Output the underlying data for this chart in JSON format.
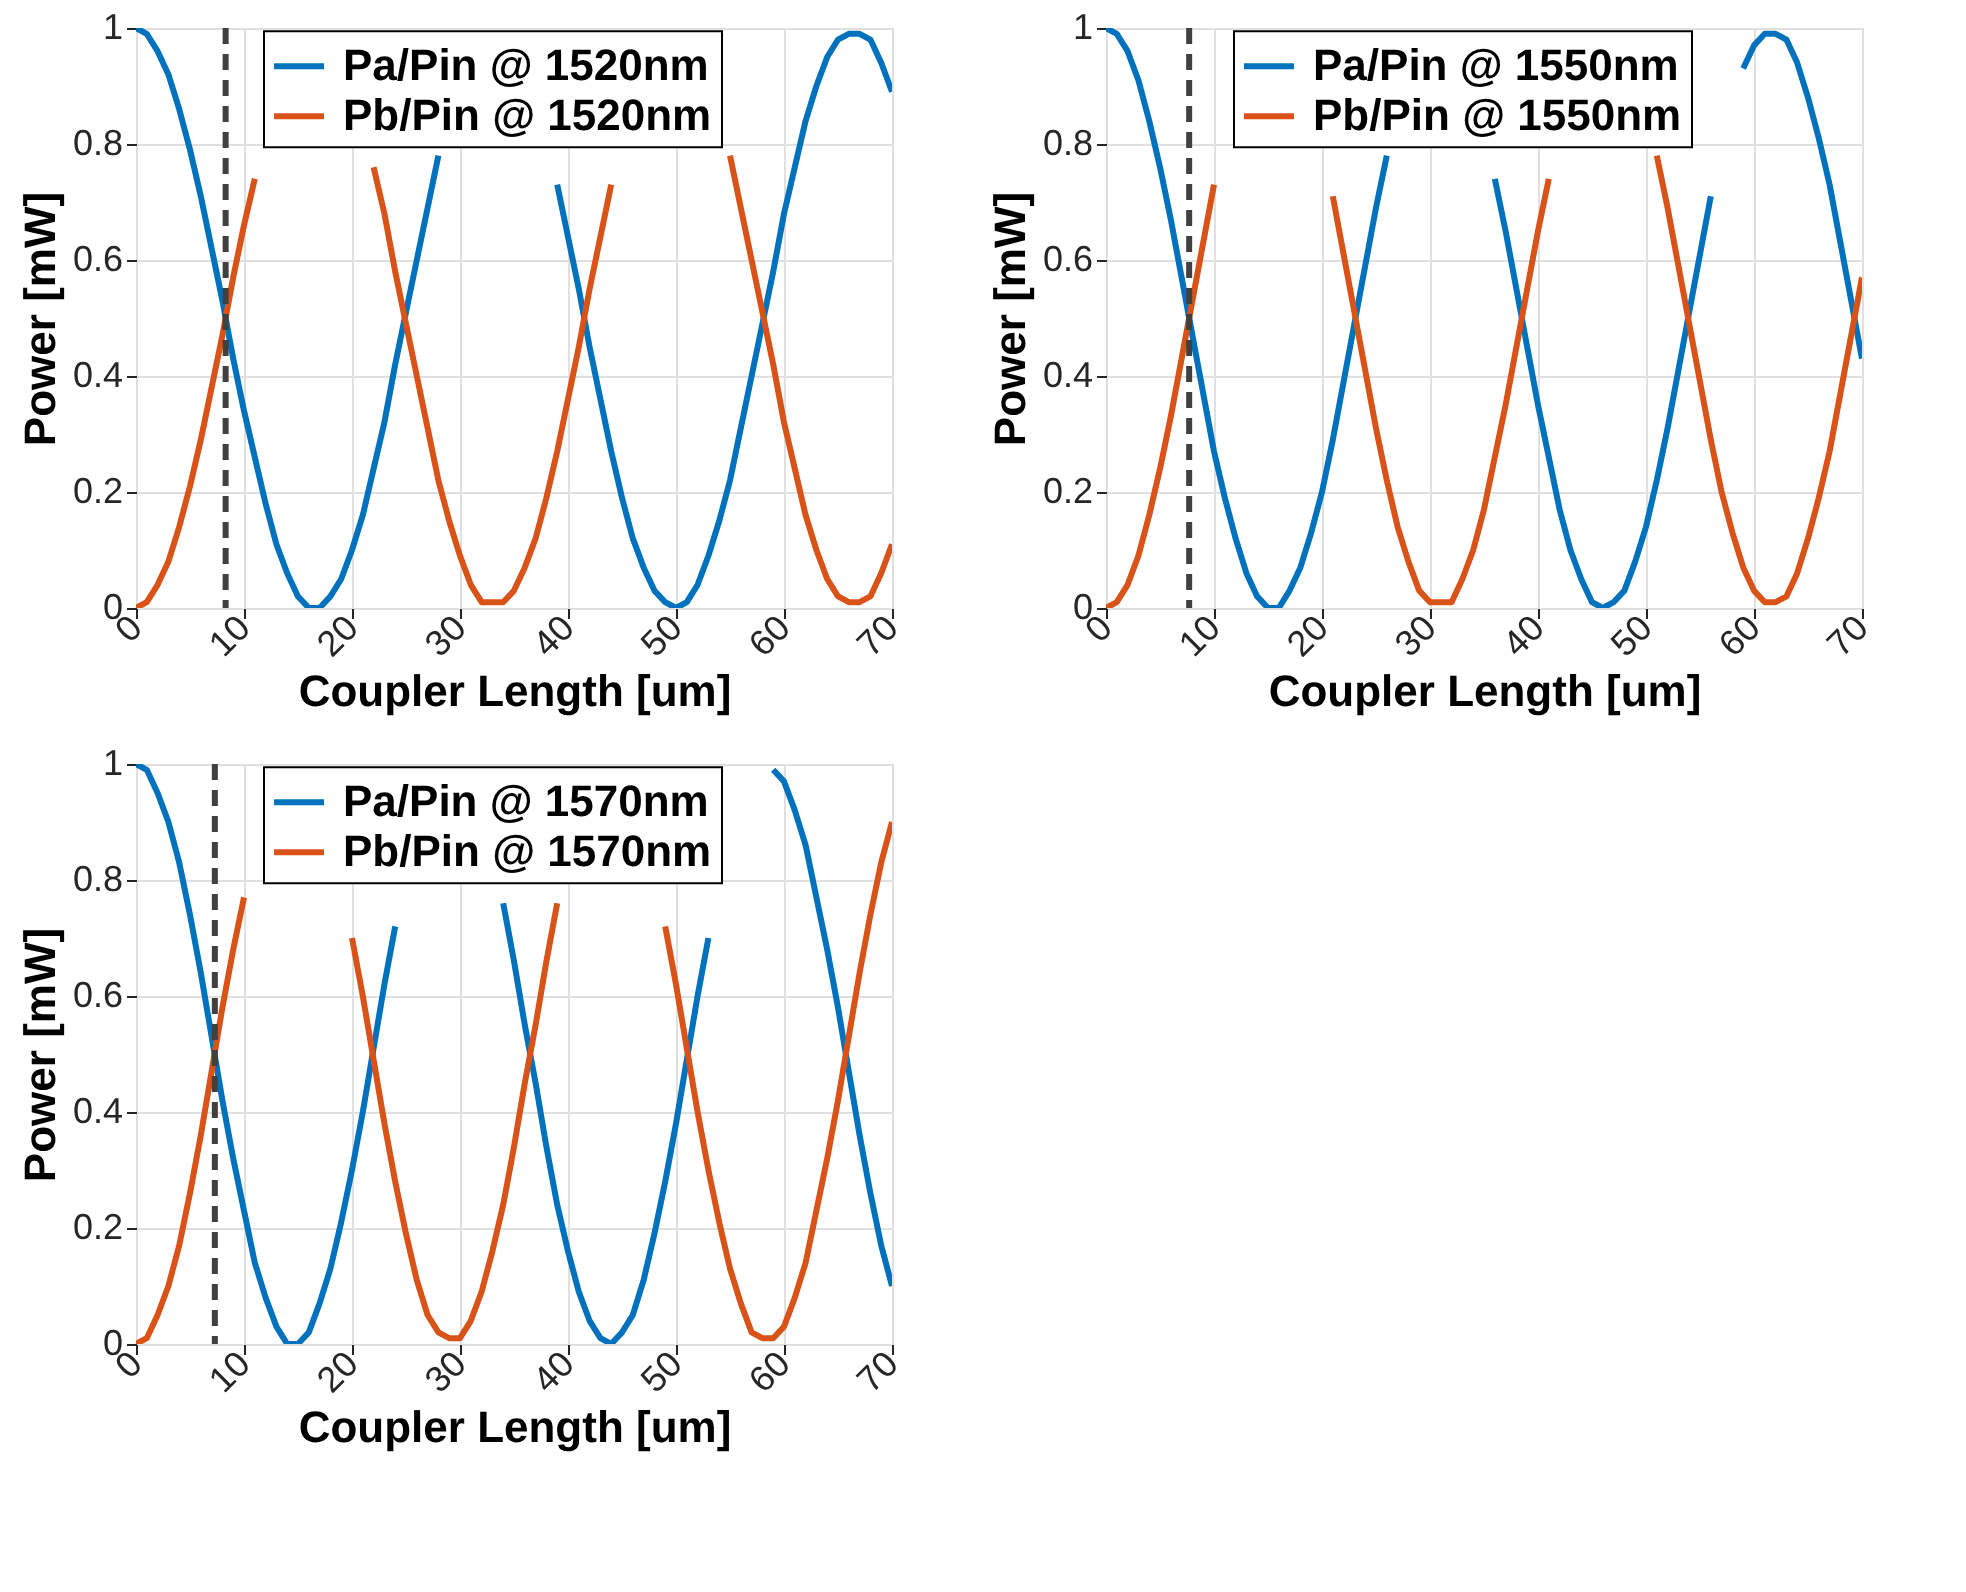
{
  "chart_data": [
    {
      "type": "line",
      "xlabel": "Coupler Length [um]",
      "ylabel": "Power [mW]",
      "xlim": [
        0,
        70
      ],
      "xticks": [
        0,
        10,
        20,
        30,
        40,
        50,
        60,
        70
      ],
      "ylim": [
        0,
        1
      ],
      "yticks": [
        0,
        0.2,
        0.4,
        0.6,
        0.8,
        1
      ],
      "grid": true,
      "legend": "top",
      "line_style": "solid",
      "marker": "none",
      "x": [
        0,
        1,
        2,
        3,
        4,
        5,
        6,
        7,
        8,
        9,
        10,
        11,
        12,
        13,
        14,
        15,
        16,
        17,
        18,
        19,
        20,
        21,
        22,
        23,
        24,
        25,
        26,
        27,
        28,
        29,
        30,
        31,
        32,
        33,
        34,
        35,
        36,
        37,
        38,
        39,
        40,
        41,
        42,
        43,
        44,
        45,
        46,
        47,
        48,
        49,
        50,
        51,
        52,
        53,
        54,
        55,
        56,
        57,
        58,
        59,
        60,
        61,
        62,
        63,
        64,
        65,
        66,
        67,
        68,
        69,
        70
      ],
      "series": [
        {
          "name": "Pa/Pin @ 1520nm",
          "color": "#0072bd",
          "values": [
            1,
            0.99,
            0.96,
            0.92,
            0.86,
            0.79,
            0.71,
            0.62,
            0.53,
            0.43,
            0.34,
            0.26,
            0.18,
            0.11,
            0.06,
            0.02,
            0,
            0,
            0.02,
            0.05,
            0.1,
            0.16,
            0.24,
            0.32,
            0.42,
            0.51,
            0.6,
            0.69,
            0.78,
            null,
            null,
            null,
            null,
            null,
            null,
            null,
            null,
            null,
            null,
            0.73,
            0.64,
            0.55,
            0.45,
            0.36,
            0.27,
            0.19,
            0.12,
            0.07,
            0.03,
            0.01,
            0,
            0.01,
            0.04,
            0.09,
            0.15,
            0.22,
            0.31,
            0.4,
            0.49,
            0.58,
            0.68,
            0.76,
            0.84,
            0.9,
            0.95,
            0.98,
            0.99,
            0.99,
            0.98,
            0.94,
            0.89
          ]
        },
        {
          "name": "Pb/Pin @ 1520nm",
          "color": "#d95319",
          "values": [
            0,
            0.01,
            0.04,
            0.08,
            0.14,
            0.21,
            0.29,
            0.38,
            0.47,
            0.57,
            0.66,
            0.74,
            null,
            null,
            null,
            null,
            null,
            null,
            null,
            null,
            null,
            null,
            0.76,
            0.68,
            0.58,
            0.49,
            0.4,
            0.31,
            0.22,
            0.15,
            0.09,
            0.04,
            0.01,
            0.01,
            0.01,
            0.03,
            0.07,
            0.12,
            0.19,
            0.27,
            0.36,
            0.45,
            0.55,
            0.64,
            0.73,
            null,
            null,
            null,
            null,
            null,
            null,
            null,
            null,
            null,
            null,
            0.78,
            0.69,
            0.6,
            0.51,
            0.42,
            0.32,
            0.24,
            0.16,
            0.1,
            0.05,
            0.02,
            0.01,
            0.01,
            0.02,
            0.06,
            0.11
          ]
        }
      ],
      "ref_lines": [
        {
          "axis": "x",
          "value": 8.3,
          "color": "#404040",
          "line_style": "dashed"
        }
      ]
    },
    {
      "type": "line",
      "xlabel": "Coupler Length [um]",
      "ylabel": "Power [mW]",
      "xlim": [
        0,
        70
      ],
      "xticks": [
        0,
        10,
        20,
        30,
        40,
        50,
        60,
        70
      ],
      "ylim": [
        0,
        1
      ],
      "yticks": [
        0,
        0.2,
        0.4,
        0.6,
        0.8,
        1
      ],
      "grid": true,
      "legend": "top",
      "line_style": "solid",
      "marker": "none",
      "x": [
        0,
        1,
        2,
        3,
        4,
        5,
        6,
        7,
        8,
        9,
        10,
        11,
        12,
        13,
        14,
        15,
        16,
        17,
        18,
        19,
        20,
        21,
        22,
        23,
        24,
        25,
        26,
        27,
        28,
        29,
        30,
        31,
        32,
        33,
        34,
        35,
        36,
        37,
        38,
        39,
        40,
        41,
        42,
        43,
        44,
        45,
        46,
        47,
        48,
        49,
        50,
        51,
        52,
        53,
        54,
        55,
        56,
        57,
        58,
        59,
        60,
        61,
        62,
        63,
        64,
        65,
        66,
        67,
        68,
        69,
        70
      ],
      "series": [
        {
          "name": "Pa/Pin @ 1550nm",
          "color": "#0072bd",
          "values": [
            1,
            0.99,
            0.96,
            0.91,
            0.84,
            0.76,
            0.67,
            0.57,
            0.47,
            0.37,
            0.27,
            0.19,
            0.12,
            0.06,
            0.02,
            0,
            0,
            0.03,
            0.07,
            0.13,
            0.2,
            0.29,
            0.39,
            0.49,
            0.59,
            0.69,
            0.78,
            null,
            null,
            null,
            null,
            null,
            null,
            null,
            null,
            null,
            0.74,
            0.65,
            0.55,
            0.45,
            0.35,
            0.26,
            0.17,
            0.1,
            0.05,
            0.01,
            0,
            0.01,
            0.03,
            0.08,
            0.14,
            0.22,
            0.31,
            0.41,
            0.51,
            0.61,
            0.71,
            null,
            null,
            0.93,
            0.97,
            0.99,
            0.99,
            0.98,
            0.94,
            0.88,
            0.81,
            0.73,
            0.63,
            0.53,
            0.43
          ]
        },
        {
          "name": "Pb/Pin @ 1550nm",
          "color": "#d95319",
          "values": [
            0,
            0.01,
            0.04,
            0.09,
            0.16,
            0.24,
            0.33,
            0.43,
            0.53,
            0.63,
            0.73,
            null,
            null,
            null,
            null,
            null,
            null,
            null,
            null,
            null,
            null,
            0.71,
            0.61,
            0.51,
            0.41,
            0.31,
            0.22,
            0.14,
            0.08,
            0.03,
            0.01,
            0.01,
            0.01,
            0.05,
            0.1,
            0.17,
            0.26,
            0.35,
            0.45,
            0.55,
            0.65,
            0.74,
            null,
            null,
            null,
            null,
            null,
            null,
            null,
            null,
            null,
            0.78,
            0.69,
            0.59,
            0.49,
            0.39,
            0.29,
            0.2,
            0.13,
            0.07,
            0.03,
            0.01,
            0.01,
            0.02,
            0.06,
            0.12,
            0.19,
            0.27,
            0.37,
            0.47,
            0.57
          ]
        }
      ],
      "ref_lines": [
        {
          "axis": "x",
          "value": 7.7,
          "color": "#404040",
          "line_style": "dashed"
        }
      ]
    },
    {
      "type": "line",
      "xlabel": "Coupler Length [um]",
      "ylabel": "Power [mW]",
      "xlim": [
        0,
        70
      ],
      "xticks": [
        0,
        10,
        20,
        30,
        40,
        50,
        60,
        70
      ],
      "ylim": [
        0,
        1
      ],
      "yticks": [
        0,
        0.2,
        0.4,
        0.6,
        0.8,
        1
      ],
      "grid": true,
      "legend": "top",
      "line_style": "solid",
      "marker": "none",
      "x": [
        0,
        1,
        2,
        3,
        4,
        5,
        6,
        7,
        8,
        9,
        10,
        11,
        12,
        13,
        14,
        15,
        16,
        17,
        18,
        19,
        20,
        21,
        22,
        23,
        24,
        25,
        26,
        27,
        28,
        29,
        30,
        31,
        32,
        33,
        34,
        35,
        36,
        37,
        38,
        39,
        40,
        41,
        42,
        43,
        44,
        45,
        46,
        47,
        48,
        49,
        50,
        51,
        52,
        53,
        54,
        55,
        56,
        57,
        58,
        59,
        60,
        61,
        62,
        63,
        64,
        65,
        66,
        67,
        68,
        69,
        70
      ],
      "series": [
        {
          "name": "Pa/Pin @ 1570nm",
          "color": "#0072bd",
          "values": [
            1,
            0.99,
            0.95,
            0.9,
            0.83,
            0.74,
            0.64,
            0.53,
            0.42,
            0.32,
            0.23,
            0.14,
            0.08,
            0.03,
            0,
            0,
            0.02,
            0.07,
            0.13,
            0.21,
            0.3,
            0.4,
            0.51,
            0.62,
            0.72,
            null,
            null,
            null,
            null,
            null,
            null,
            null,
            null,
            null,
            0.76,
            0.66,
            0.55,
            0.45,
            0.34,
            0.24,
            0.16,
            0.09,
            0.04,
            0.01,
            0,
            0.02,
            0.05,
            0.11,
            0.19,
            0.28,
            0.38,
            0.49,
            0.6,
            0.7,
            null,
            null,
            null,
            null,
            null,
            0.99,
            0.97,
            0.92,
            0.86,
            0.77,
            0.68,
            0.58,
            0.47,
            0.36,
            0.26,
            0.17,
            0.1
          ]
        },
        {
          "name": "Pb/Pin @ 1570nm",
          "color": "#d95319",
          "values": [
            0,
            0.01,
            0.05,
            0.1,
            0.17,
            0.26,
            0.36,
            0.47,
            0.58,
            0.68,
            0.77,
            null,
            null,
            null,
            null,
            null,
            null,
            null,
            null,
            null,
            0.7,
            0.6,
            0.49,
            0.38,
            0.28,
            0.19,
            0.11,
            0.05,
            0.02,
            0.01,
            0.01,
            0.04,
            0.09,
            0.16,
            0.24,
            0.34,
            0.45,
            0.55,
            0.66,
            0.76,
            null,
            null,
            null,
            null,
            null,
            null,
            null,
            null,
            null,
            0.72,
            0.62,
            0.51,
            0.4,
            0.3,
            0.21,
            0.13,
            0.07,
            0.02,
            0.01,
            0.01,
            0.03,
            0.08,
            0.14,
            0.23,
            0.32,
            0.42,
            0.53,
            0.64,
            0.74,
            0.83,
            0.9
          ]
        }
      ],
      "ref_lines": [
        {
          "axis": "x",
          "value": 7.3,
          "color": "#404040",
          "line_style": "dashed"
        }
      ]
    }
  ]
}
